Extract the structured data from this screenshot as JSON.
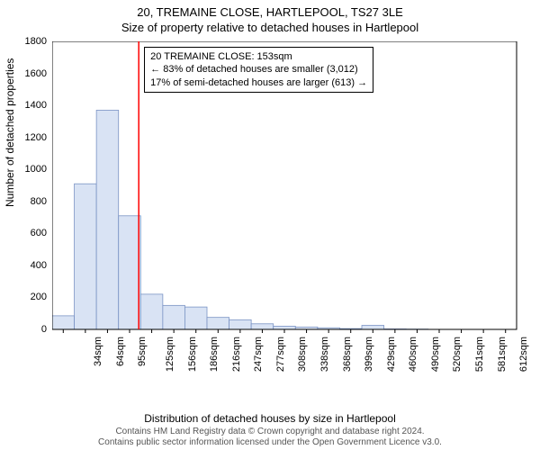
{
  "title_line1": "20, TREMAINE CLOSE, HARTLEPOOL, TS27 3LE",
  "title_line2": "Size of property relative to detached houses in Hartlepool",
  "ylabel": "Number of detached properties",
  "xlabel": "Distribution of detached houses by size in Hartlepool",
  "footer_line1": "Contains HM Land Registry data © Crown copyright and database right 2024.",
  "footer_line2": "Contains public sector information licensed under the Open Government Licence v3.0.",
  "annotation": {
    "line1": "20 TREMAINE CLOSE: 153sqm",
    "line2": "← 83% of detached houses are smaller (3,012)",
    "line3": "17% of semi-detached houses are larger (613) →"
  },
  "marker_x_value": 153,
  "chart": {
    "type": "histogram",
    "ylim": [
      0,
      1800
    ],
    "ytick_step": 200,
    "x_start": 34,
    "x_step": 30.4,
    "x_count": 21,
    "x_unit": "sqm",
    "background_color": "#ffffff",
    "axis_color": "#000000",
    "grid_color": "#000000",
    "bar_fill": "#d9e3f4",
    "bar_stroke": "#7a93c4",
    "marker_color": "#ff0000",
    "label_fontsize": 12,
    "tick_fontsize": 11,
    "title_fontsize": 13,
    "values": [
      85,
      910,
      1370,
      710,
      220,
      150,
      140,
      75,
      60,
      35,
      20,
      15,
      10,
      5,
      25,
      3,
      2,
      0,
      0,
      0,
      0
    ]
  }
}
